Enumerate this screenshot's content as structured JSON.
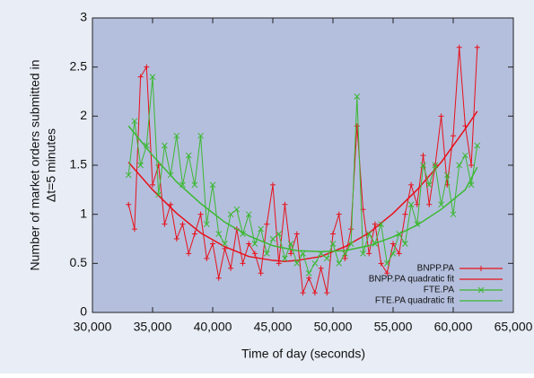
{
  "chart_data": {
    "type": "line",
    "ylabel": [
      "Number of market orders submitted in",
      "Δt=5 minutes"
    ],
    "xlabel": "Time of day (seconds)",
    "xlim": [
      30000,
      65000
    ],
    "xticks": [
      {
        "value": 30000,
        "label": "30,000"
      },
      {
        "value": 35000,
        "label": "35,000"
      },
      {
        "value": 40000,
        "label": "40,000"
      },
      {
        "value": 45000,
        "label": "45,000"
      },
      {
        "value": 50000,
        "label": "50,000"
      },
      {
        "value": 55000,
        "label": "55,000"
      },
      {
        "value": 60000,
        "label": "60,000"
      },
      {
        "value": 65000,
        "label": "65,000"
      }
    ],
    "ylim": [
      0,
      3
    ],
    "yticks": [
      0,
      0.5,
      1,
      1.5,
      2,
      2.5,
      3
    ],
    "legend": "lower right",
    "series": [
      {
        "name": "BNPP.PA",
        "color": "#e8101a",
        "marker": "+",
        "x": [
          33000,
          33500,
          34000,
          34500,
          35000,
          35500,
          36000,
          36500,
          37000,
          37500,
          38000,
          38500,
          39000,
          39500,
          40000,
          40500,
          41000,
          41500,
          42000,
          42500,
          43000,
          43500,
          44000,
          44500,
          45000,
          45500,
          46000,
          46500,
          47000,
          47500,
          48000,
          48500,
          49000,
          49500,
          50000,
          50500,
          51000,
          51500,
          52000,
          52500,
          53000,
          53500,
          54000,
          54500,
          55000,
          55500,
          56000,
          56500,
          57000,
          57500,
          58000,
          58500,
          59000,
          59500,
          60000,
          60500,
          61000,
          61500,
          62000
        ],
        "values": [
          1.1,
          0.85,
          2.4,
          2.5,
          1.3,
          1.5,
          0.9,
          1.1,
          0.75,
          0.9,
          0.6,
          0.8,
          1.0,
          0.55,
          0.7,
          0.35,
          0.65,
          0.45,
          0.85,
          0.5,
          0.7,
          0.6,
          0.4,
          0.9,
          1.3,
          0.5,
          1.1,
          0.6,
          0.8,
          0.2,
          0.35,
          0.2,
          0.45,
          0.2,
          0.8,
          1.0,
          0.55,
          0.85,
          1.9,
          1.05,
          0.6,
          0.9,
          0.5,
          0.4,
          0.7,
          0.6,
          1.0,
          1.3,
          1.1,
          1.6,
          1.1,
          1.5,
          2.0,
          1.3,
          1.8,
          2.7,
          1.9,
          1.5,
          2.7
        ]
      },
      {
        "name": "BNPP.PA quadratic fit",
        "color": "#e8101a",
        "x": [
          33000,
          35000,
          37000,
          39000,
          41000,
          43000,
          45000,
          46000,
          47000,
          49000,
          51000,
          53000,
          55000,
          57000,
          59000,
          61000,
          62000
        ],
        "values": [
          1.53,
          1.25,
          1.01,
          0.81,
          0.67,
          0.57,
          0.53,
          0.52,
          0.53,
          0.57,
          0.67,
          0.81,
          1.01,
          1.25,
          1.53,
          1.87,
          2.05
        ]
      },
      {
        "name": "FTE.PA",
        "color": "#3cb832",
        "marker": "x",
        "x": [
          33000,
          33500,
          34000,
          34500,
          35000,
          35500,
          36000,
          36500,
          37000,
          37500,
          38000,
          38500,
          39000,
          39500,
          40000,
          40500,
          41000,
          41500,
          42000,
          42500,
          43000,
          43500,
          44000,
          44500,
          45000,
          45500,
          46000,
          46500,
          47000,
          47500,
          48000,
          48500,
          49000,
          49500,
          50000,
          50500,
          51000,
          51500,
          52000,
          52500,
          53000,
          53500,
          54000,
          54500,
          55000,
          55500,
          56000,
          56500,
          57000,
          57500,
          58000,
          58500,
          59000,
          59500,
          60000,
          60500,
          61000,
          61500,
          62000
        ],
        "values": [
          1.4,
          1.95,
          1.5,
          1.7,
          2.4,
          1.2,
          1.7,
          1.4,
          1.8,
          1.3,
          1.6,
          1.3,
          1.8,
          0.9,
          1.3,
          0.8,
          0.7,
          1.0,
          1.05,
          0.8,
          1.0,
          0.7,
          0.85,
          0.6,
          0.75,
          0.8,
          0.55,
          0.7,
          0.5,
          0.6,
          0.4,
          0.5,
          0.6,
          0.55,
          0.7,
          0.5,
          0.6,
          0.7,
          2.2,
          0.6,
          0.8,
          0.7,
          0.9,
          0.5,
          0.6,
          0.8,
          0.7,
          1.1,
          0.9,
          1.5,
          1.3,
          1.5,
          1.1,
          1.4,
          1.0,
          1.5,
          1.6,
          1.3,
          1.7
        ]
      },
      {
        "name": "FTE.PA quadratic fit",
        "color": "#3cb832",
        "x": [
          33000,
          35000,
          37000,
          39000,
          41000,
          43000,
          45000,
          47000,
          49000,
          51000,
          53000,
          55000,
          57000,
          59000,
          61000,
          62000
        ],
        "values": [
          1.9,
          1.6,
          1.33,
          1.11,
          0.92,
          0.78,
          0.68,
          0.63,
          0.62,
          0.63,
          0.68,
          0.77,
          0.89,
          1.05,
          1.25,
          1.48
        ]
      }
    ]
  }
}
